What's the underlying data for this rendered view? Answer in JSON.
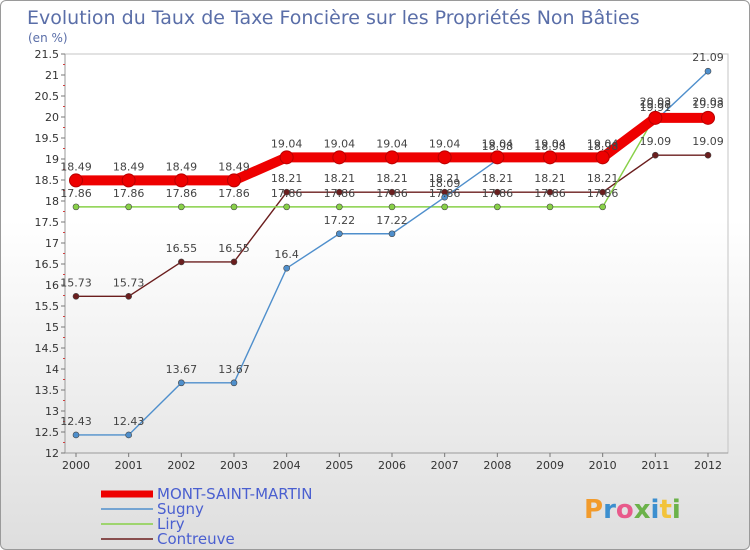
{
  "chart_data": {
    "type": "line",
    "title": "Evolution du Taux de Taxe Foncière sur les Propriétés Non Bâties",
    "unit_label": "(en %)",
    "x": [
      "2000",
      "2001",
      "2002",
      "2003",
      "2004",
      "2005",
      "2006",
      "2007",
      "2008",
      "2009",
      "2010",
      "2011",
      "2012"
    ],
    "ylim": [
      12,
      21.5
    ],
    "yticks": [
      12,
      12.5,
      13,
      13.5,
      14,
      14.5,
      15,
      15.5,
      16,
      16.5,
      17,
      17.5,
      18,
      18.5,
      19,
      19.5,
      20,
      20.5,
      21,
      21.5
    ],
    "ytick_labels": [
      "12",
      "12.5",
      "13",
      "13.5",
      "14",
      "14.5",
      "15",
      "15.5",
      "16",
      "16.5",
      "17",
      "17.5",
      "18",
      "18.5",
      "19",
      "19.5",
      "20",
      "20.5",
      "21",
      "21.5"
    ],
    "series": [
      {
        "name": "Contreuve",
        "color": "#6b1e1e",
        "line_style": "thin",
        "values": [
          15.73,
          15.73,
          16.55,
          16.55,
          18.21,
          18.21,
          18.21,
          18.21,
          18.21,
          18.21,
          18.21,
          19.09,
          19.09
        ],
        "labels": [
          "15.73",
          "15.73",
          "16.55",
          "16.55",
          "18.21",
          "18.21",
          "18.21",
          "18.21",
          "18.21",
          "18.21",
          "18.21",
          "19.09",
          "19.09"
        ]
      },
      {
        "name": "Liry",
        "color": "#88d048",
        "line_style": "thin",
        "values": [
          17.86,
          17.86,
          17.86,
          17.86,
          17.86,
          17.86,
          17.86,
          17.86,
          17.86,
          17.86,
          17.86,
          20.03,
          20.03
        ],
        "labels": [
          "17.86",
          "17.86",
          "17.86",
          "17.86",
          "17.86",
          "17.86",
          "17.86",
          "17.86",
          "17.86",
          "17.86",
          "17.86",
          "20.03",
          "20.03"
        ]
      },
      {
        "name": "Sugny",
        "color": "#4f8fcc",
        "line_style": "thin",
        "values": [
          12.43,
          12.43,
          13.67,
          13.67,
          16.4,
          17.22,
          17.22,
          18.09,
          18.98,
          18.98,
          18.98,
          19.91,
          21.09
        ],
        "labels": [
          "12.43",
          "12.43",
          "13.67",
          "13.67",
          "16.4",
          "17.22",
          "17.22",
          "18.09",
          "18.98",
          "18.98",
          "18.98",
          "19.91",
          "21.09"
        ]
      },
      {
        "name": "MONT-SAINT-MARTIN",
        "color": "#ee0000",
        "line_style": "thick",
        "values": [
          18.49,
          18.49,
          18.49,
          18.49,
          19.04,
          19.04,
          19.04,
          19.04,
          19.04,
          19.04,
          19.04,
          19.98,
          19.98
        ],
        "labels": [
          "18.49",
          "18.49",
          "18.49",
          "18.49",
          "19.04",
          "19.04",
          "19.04",
          "19.04",
          "19.04",
          "19.04",
          "19.04",
          "19.98",
          "19.98"
        ]
      }
    ],
    "legend": [
      "MONT-SAINT-MARTIN",
      "Sugny",
      "Liry",
      "Contreuve"
    ],
    "legend_position": "bottom-left",
    "grid": false
  },
  "brand": {
    "letters": [
      "P",
      "r",
      "o",
      "x",
      "i",
      "t",
      "i"
    ],
    "colors": [
      "#f29b2c",
      "#3c8fcf",
      "#e85a8b",
      "#6bb24a",
      "#3c8fcf",
      "#f2c33a",
      "#6bb24a"
    ]
  }
}
